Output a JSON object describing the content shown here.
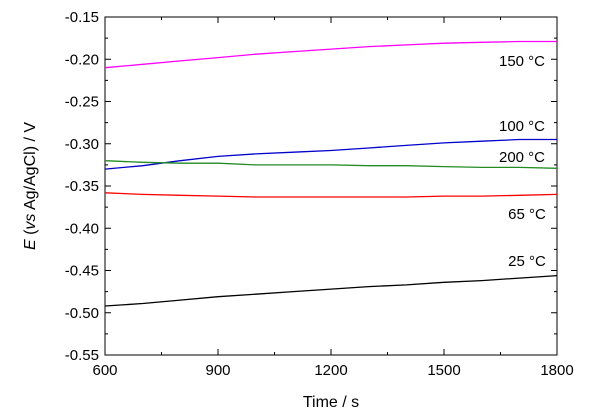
{
  "chart_data": {
    "type": "line",
    "title": "",
    "xlabel": "Time / s",
    "ylabel_parts": [
      "E",
      " (",
      "vs",
      " Ag/AgCl) / V"
    ],
    "xlim": [
      600,
      1800
    ],
    "ylim": [
      -0.55,
      -0.15
    ],
    "xticks": [
      600,
      900,
      1200,
      1500,
      1800
    ],
    "xtick_labels": [
      "600",
      "900",
      "1200",
      "1500",
      "1800"
    ],
    "yticks": [
      -0.15,
      -0.2,
      -0.25,
      -0.3,
      -0.35,
      -0.4,
      -0.45,
      -0.5,
      -0.55
    ],
    "ytick_labels": [
      "-0.15",
      "-0.20",
      "-0.25",
      "-0.30",
      "-0.35",
      "-0.40",
      "-0.45",
      "-0.50",
      "-0.55"
    ],
    "grid": false,
    "legend": "none",
    "series": [
      {
        "name": "150 °C",
        "color": "#ff00ff",
        "x": [
          600,
          700,
          800,
          900,
          1000,
          1100,
          1200,
          1300,
          1400,
          1500,
          1600,
          1700,
          1800
        ],
        "y": [
          -0.21,
          -0.206,
          -0.202,
          -0.198,
          -0.194,
          -0.191,
          -0.188,
          -0.185,
          -0.183,
          -0.181,
          -0.18,
          -0.179,
          -0.179
        ]
      },
      {
        "name": "100 °C",
        "color": "#0000cc",
        "x": [
          600,
          700,
          800,
          900,
          1000,
          1100,
          1200,
          1300,
          1400,
          1500,
          1600,
          1700,
          1800
        ],
        "y": [
          -0.33,
          -0.326,
          -0.32,
          -0.315,
          -0.312,
          -0.31,
          -0.308,
          -0.305,
          -0.302,
          -0.299,
          -0.297,
          -0.295,
          -0.295
        ]
      },
      {
        "name": "200 °C",
        "color": "#228b22",
        "x": [
          600,
          700,
          800,
          900,
          1000,
          1100,
          1200,
          1300,
          1400,
          1500,
          1600,
          1700,
          1800
        ],
        "y": [
          -0.32,
          -0.322,
          -0.323,
          -0.323,
          -0.325,
          -0.325,
          -0.325,
          -0.326,
          -0.326,
          -0.327,
          -0.328,
          -0.328,
          -0.329
        ]
      },
      {
        "name": "65 °C",
        "color": "#ff0000",
        "x": [
          600,
          700,
          800,
          900,
          1000,
          1100,
          1200,
          1300,
          1400,
          1500,
          1600,
          1700,
          1800
        ],
        "y": [
          -0.358,
          -0.36,
          -0.361,
          -0.362,
          -0.363,
          -0.363,
          -0.363,
          -0.363,
          -0.363,
          -0.362,
          -0.362,
          -0.361,
          -0.36
        ]
      },
      {
        "name": "25 °C",
        "color": "#000000",
        "x": [
          600,
          700,
          800,
          900,
          1000,
          1100,
          1200,
          1300,
          1400,
          1500,
          1600,
          1700,
          1800
        ],
        "y": [
          -0.492,
          -0.489,
          -0.485,
          -0.481,
          -0.478,
          -0.475,
          -0.472,
          -0.469,
          -0.467,
          -0.464,
          -0.462,
          -0.459,
          -0.456
        ]
      }
    ]
  }
}
